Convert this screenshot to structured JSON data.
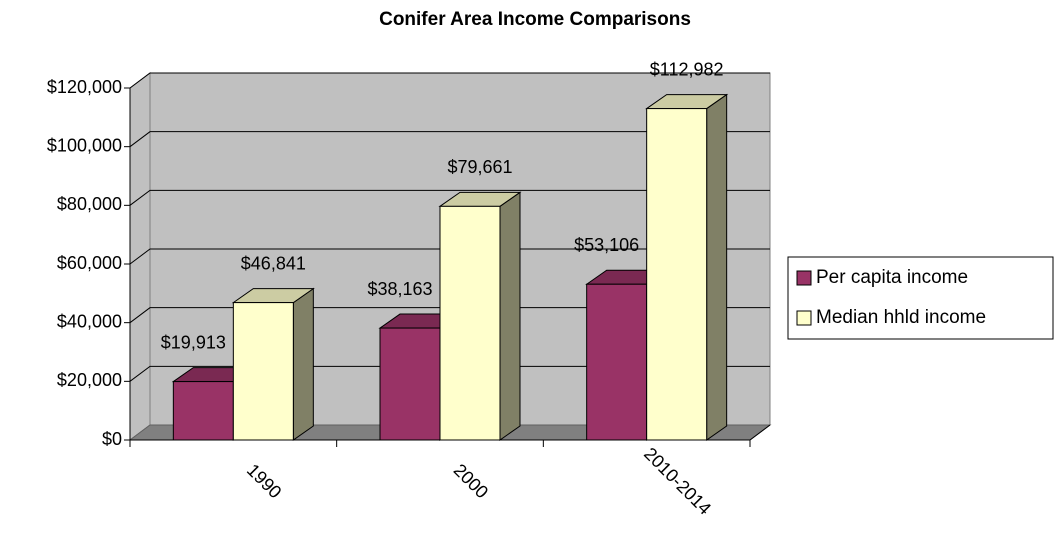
{
  "chart_data": {
    "type": "bar3d",
    "title": "Conifer Area Income Comparisons",
    "categories": [
      "1990",
      "2000",
      "2010-2014"
    ],
    "series": [
      {
        "name": "Per capita income",
        "color": "#993366",
        "values": [
          19913,
          38163,
          53106
        ],
        "value_labels": [
          "$19,913",
          "$38,163",
          "$53,106"
        ]
      },
      {
        "name": "Median hhld income",
        "color": "#ffffcc",
        "values": [
          46841,
          79661,
          112982
        ],
        "value_labels": [
          "$46,841",
          "$79,661",
          "$112,982"
        ]
      }
    ],
    "ylim": [
      0,
      120000
    ],
    "yticks": [
      {
        "value": 0,
        "label": "$0"
      },
      {
        "value": 20000,
        "label": "$20,000"
      },
      {
        "value": 40000,
        "label": "$40,000"
      },
      {
        "value": 60000,
        "label": "$60,000"
      },
      {
        "value": 80000,
        "label": "$80,000"
      },
      {
        "value": 100000,
        "label": "$100,000"
      },
      {
        "value": 120000,
        "label": "$120,000"
      }
    ],
    "grid": true,
    "legend": "right"
  }
}
